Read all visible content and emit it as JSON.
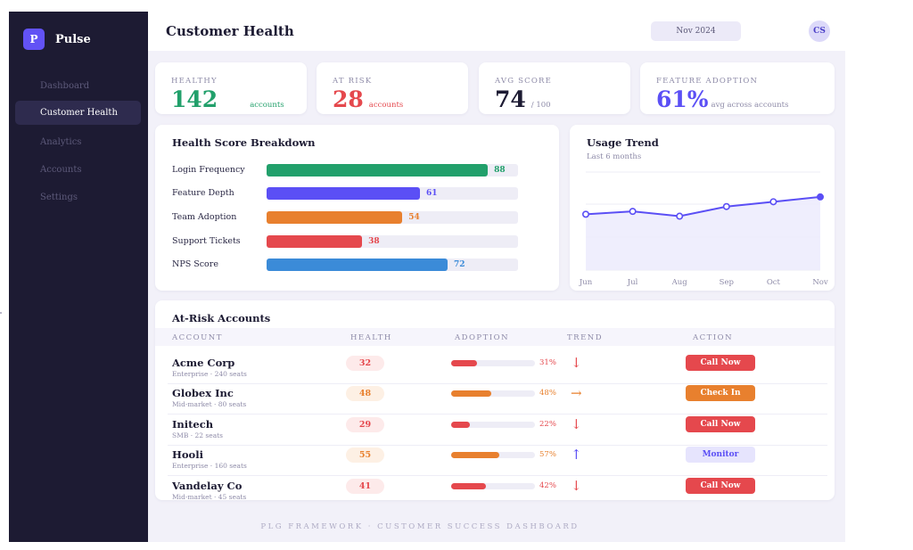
{
  "app": {
    "logo_letter": "P",
    "name": "Pulse"
  },
  "sidebar": {
    "items": [
      {
        "label": "Dashboard",
        "active": false
      },
      {
        "label": "Customer Health",
        "active": true
      },
      {
        "label": "Analytics",
        "active": false
      },
      {
        "label": "Accounts",
        "active": false
      },
      {
        "label": "Settings",
        "active": false
      }
    ]
  },
  "header": {
    "title": "Customer Health",
    "date": "Nov 2024",
    "avatar_initials": "CS"
  },
  "kpis": [
    {
      "label": "HEALTHY",
      "value": "142",
      "sub": "accounts",
      "color": "#22a06b"
    },
    {
      "label": "AT RISK",
      "value": "28",
      "sub": "accounts",
      "color": "#e5484d"
    },
    {
      "label": "AVG SCORE",
      "value": "74",
      "sub": "/ 100",
      "color": "#1d1b33"
    },
    {
      "label": "FEATURE ADOPTION",
      "value": "61%",
      "sub": "avg across accounts",
      "color": "#5b4ff5"
    }
  ],
  "breakdown": {
    "title": "Health Score Breakdown",
    "max": 100,
    "rows": [
      {
        "label": "Login Frequency",
        "value": 88,
        "color": "#22a06b"
      },
      {
        "label": "Feature Depth",
        "value": 61,
        "color": "#5b4ff5"
      },
      {
        "label": "Team Adoption",
        "value": 54,
        "color": "#e8802e"
      },
      {
        "label": "Support Tickets",
        "value": 38,
        "color": "#e5484d"
      },
      {
        "label": "NPS Score",
        "value": 72,
        "color": "#3b8bd8"
      }
    ]
  },
  "usage": {
    "title": "Usage Trend",
    "subtitle": "Last 6 months"
  },
  "chart_data": {
    "type": "line",
    "categories": [
      "Jun",
      "Jul",
      "Aug",
      "Sep",
      "Oct",
      "Nov"
    ],
    "series": [
      {
        "values": [
          58,
          61,
          56,
          66,
          71,
          76
        ]
      }
    ],
    "ylim": [
      0,
      100
    ],
    "grid": true,
    "color": "#5b4ff5"
  },
  "at_risk": {
    "title": "At-Risk Accounts",
    "columns": [
      "ACCOUNT",
      "HEALTH",
      "ADOPTION",
      "TREND",
      "ACTION"
    ],
    "rows": [
      {
        "name": "Acme Corp",
        "meta": "Enterprise · 240 seats",
        "health": "32",
        "adoption": 31,
        "adoption_label": "31%",
        "trend": "↓",
        "action": "Call Now",
        "tone": "red"
      },
      {
        "name": "Globex Inc",
        "meta": "Mid-market · 80 seats",
        "health": "48",
        "adoption": 48,
        "adoption_label": "48%",
        "trend": "→",
        "action": "Check In",
        "tone": "orange"
      },
      {
        "name": "Initech",
        "meta": "SMB · 22 seats",
        "health": "29",
        "adoption": 22,
        "adoption_label": "22%",
        "trend": "↓",
        "action": "Call Now",
        "tone": "red"
      },
      {
        "name": "Hooli",
        "meta": "Enterprise · 160 seats",
        "health": "55",
        "adoption": 57,
        "adoption_label": "57%",
        "trend": "↑",
        "action": "Monitor",
        "tone": "monitor"
      },
      {
        "name": "Vandelay Co",
        "meta": "Mid-market · 45 seats",
        "health": "41",
        "adoption": 42,
        "adoption_label": "42%",
        "trend": "↓",
        "action": "Call Now",
        "tone": "red"
      }
    ]
  },
  "footer": "PLG FRAMEWORK · CUSTOMER SUCCESS DASHBOARD",
  "colors": {
    "red": "#e5484d",
    "orange": "#e8802e",
    "purple": "#5b4ff5",
    "sidebar_bg": "#1d1b33",
    "page_bg": "#f2f1f9"
  }
}
